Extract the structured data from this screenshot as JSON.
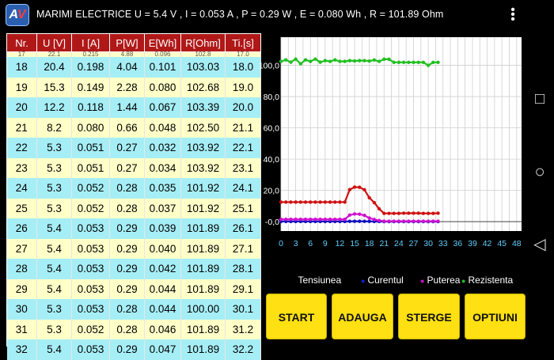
{
  "app": {
    "logo": {
      "a": "A",
      "v": "V"
    },
    "title": "MARIMI ELECTRICE   U = 5.4  V ,  I = 0.053  A ,  P = 0.29  W ,  E = 0.080  Wh ,  R = 101.89  Ohm",
    "menu_icon": "overflow-menu-icon"
  },
  "table": {
    "headers": [
      "Nr.",
      "U [V]",
      "I [A]",
      "P[W]",
      "E[Wh]",
      "R[Ohm]",
      "Ti.[s]"
    ],
    "partial_row": [
      "17",
      "22.1",
      "0.215",
      "4.88",
      "0.096",
      "102.8",
      "17.0"
    ],
    "rows": [
      [
        "18",
        "20.4",
        "0.198",
        "4.04",
        "0.101",
        "103.03",
        "18.0"
      ],
      [
        "19",
        "15.3",
        "0.149",
        "2.28",
        "0.080",
        "102.68",
        "19.0"
      ],
      [
        "20",
        "12.2",
        "0.118",
        "1.44",
        "0.067",
        "103.39",
        "20.0"
      ],
      [
        "21",
        "8.2",
        "0.080",
        "0.66",
        "0.048",
        "102.50",
        "21.1"
      ],
      [
        "22",
        "5.3",
        "0.051",
        "0.27",
        "0.032",
        "103.92",
        "22.1"
      ],
      [
        "23",
        "5.3",
        "0.051",
        "0.27",
        "0.034",
        "103.92",
        "23.1"
      ],
      [
        "24",
        "5.3",
        "0.052",
        "0.28",
        "0.035",
        "101.92",
        "24.1"
      ],
      [
        "25",
        "5.3",
        "0.052",
        "0.28",
        "0.037",
        "101.92",
        "25.1"
      ],
      [
        "26",
        "5.4",
        "0.053",
        "0.29",
        "0.039",
        "101.89",
        "26.1"
      ],
      [
        "27",
        "5.4",
        "0.053",
        "0.29",
        "0.040",
        "101.89",
        "27.1"
      ],
      [
        "28",
        "5.4",
        "0.053",
        "0.29",
        "0.042",
        "101.89",
        "28.1"
      ],
      [
        "29",
        "5.4",
        "0.053",
        "0.29",
        "0.044",
        "101.89",
        "29.1"
      ],
      [
        "30",
        "5.3",
        "0.053",
        "0.28",
        "0.044",
        "100.00",
        "30.1"
      ],
      [
        "31",
        "5.3",
        "0.052",
        "0.28",
        "0.046",
        "101.89",
        "31.2"
      ],
      [
        "32",
        "5.4",
        "0.053",
        "0.29",
        "0.047",
        "101.89",
        "32.2"
      ]
    ]
  },
  "chart_data": {
    "type": "line",
    "x_ticks": [
      "0",
      "3",
      "6",
      "9",
      "12",
      "15",
      "18",
      "21",
      "24",
      "27",
      "30",
      "33",
      "36",
      "39",
      "42",
      "45",
      "48"
    ],
    "y_ticks": [
      "-0,0",
      "20,0",
      "40,0",
      "60,0",
      "80,0",
      "100,0"
    ],
    "xlim": [
      0,
      49
    ],
    "ylim": [
      -6,
      118
    ],
    "grid": true,
    "legend_position": "bottom",
    "series": [
      {
        "name": "Tensiunea",
        "color": "#d01010",
        "legend_dot": "#000000",
        "x": [
          0,
          1,
          2,
          3,
          4,
          5,
          6,
          7,
          8,
          9,
          10,
          11,
          12,
          13,
          14,
          15,
          16,
          17,
          18,
          19,
          20,
          21,
          22,
          23,
          24,
          25,
          26,
          27,
          28,
          29,
          30,
          31,
          32
        ],
        "y": [
          12.5,
          12.5,
          12.5,
          12.5,
          12.5,
          12.5,
          12.5,
          12.5,
          12.5,
          12.5,
          12.5,
          12.5,
          12.5,
          12.5,
          20.5,
          22.1,
          22.0,
          20.4,
          15.3,
          12.2,
          8.2,
          5.3,
          5.3,
          5.3,
          5.3,
          5.4,
          5.4,
          5.4,
          5.4,
          5.3,
          5.3,
          5.3,
          5.4
        ]
      },
      {
        "name": "Curentul",
        "color": "#1010c0",
        "legend_dot": "#1020e0",
        "x": [
          0,
          1,
          2,
          3,
          4,
          5,
          6,
          7,
          8,
          9,
          10,
          11,
          12,
          13,
          14,
          15,
          16,
          17,
          18,
          19,
          20,
          21,
          22,
          23,
          24,
          25,
          26,
          27,
          28,
          29,
          30,
          31,
          32
        ],
        "y": [
          0.12,
          0.12,
          0.12,
          0.12,
          0.12,
          0.12,
          0.12,
          0.12,
          0.12,
          0.12,
          0.12,
          0.12,
          0.12,
          0.12,
          0.2,
          0.21,
          0.21,
          0.2,
          0.15,
          0.12,
          0.08,
          0.05,
          0.05,
          0.05,
          0.05,
          0.05,
          0.05,
          0.05,
          0.05,
          0.05,
          0.05,
          0.05,
          0.05
        ]
      },
      {
        "name": "Puterea",
        "color": "#d010d0",
        "legend_dot": "#d010d0",
        "x": [
          0,
          1,
          2,
          3,
          4,
          5,
          6,
          7,
          8,
          9,
          10,
          11,
          12,
          13,
          14,
          15,
          16,
          17,
          18,
          19,
          20,
          21,
          22,
          23,
          24,
          25,
          26,
          27,
          28,
          29,
          30,
          31,
          32
        ],
        "y": [
          1.5,
          1.5,
          1.5,
          1.5,
          1.5,
          1.5,
          1.5,
          1.5,
          1.5,
          1.5,
          1.5,
          1.5,
          1.5,
          1.5,
          4.2,
          4.9,
          4.8,
          4.0,
          2.3,
          1.4,
          0.7,
          0.3,
          0.3,
          0.3,
          0.3,
          0.3,
          0.3,
          0.3,
          0.3,
          0.3,
          0.3,
          0.3,
          0.3
        ]
      },
      {
        "name": "Rezistenta",
        "color": "#20c020",
        "legend_dot": "#20c020",
        "x": [
          0,
          1,
          2,
          3,
          4,
          5,
          6,
          7,
          8,
          9,
          10,
          11,
          12,
          13,
          14,
          15,
          16,
          17,
          18,
          19,
          20,
          21,
          22,
          23,
          24,
          25,
          26,
          27,
          28,
          29,
          30,
          31,
          32
        ],
        "y": [
          102.5,
          103.5,
          102.0,
          104.0,
          101.0,
          103.5,
          102.5,
          104.0,
          102.0,
          103.0,
          102.5,
          103.5,
          102.5,
          102.5,
          103.0,
          102.8,
          103.0,
          103.0,
          102.7,
          103.4,
          102.5,
          103.9,
          103.9,
          101.9,
          101.9,
          101.9,
          101.9,
          101.9,
          101.9,
          101.9,
          100.0,
          101.9,
          101.9
        ]
      }
    ]
  },
  "legend": {
    "items": [
      {
        "label": "Tensiunea",
        "dot": "#000000"
      },
      {
        "label": "Curentul",
        "dot": "#1020e0"
      },
      {
        "label": "Puterea",
        "dot": "#d010d0"
      },
      {
        "label": "Rezistenta",
        "dot": "#20c020"
      }
    ]
  },
  "buttons": {
    "start": "START",
    "adauga": "ADAUGA",
    "sterge": "STERGE",
    "optiuni": "OPTIUNI",
    "color": "#ffe012"
  },
  "navbar": {
    "square": "□",
    "circle": "○",
    "back": "◁",
    "icons": [
      "recent-apps-icon",
      "home-icon",
      "back-icon"
    ]
  }
}
